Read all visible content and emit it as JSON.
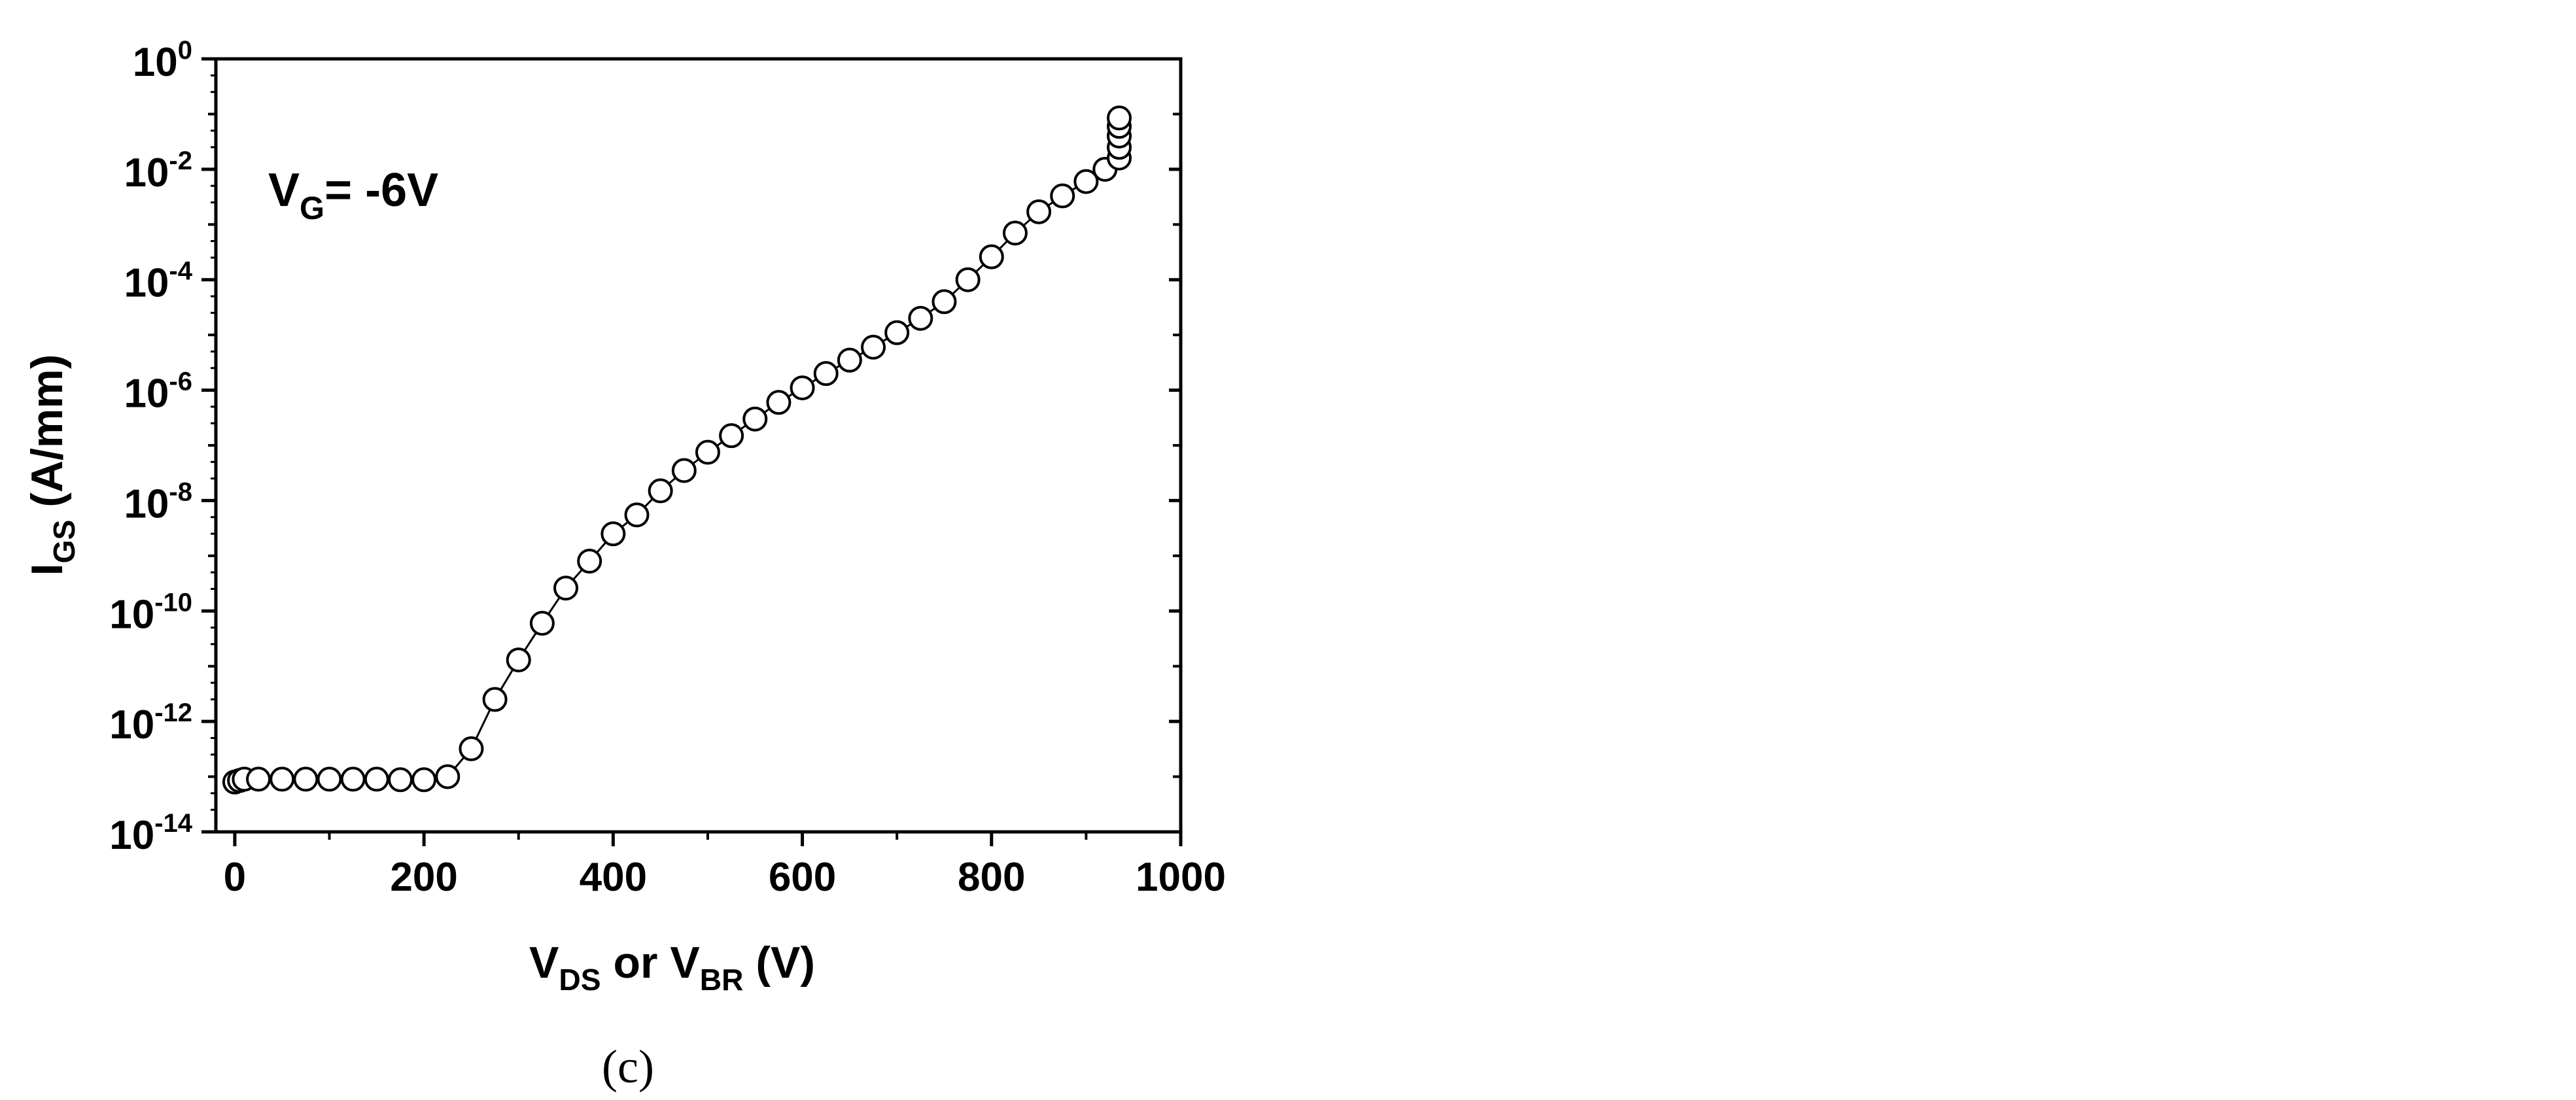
{
  "chart_data": {
    "type": "scatter",
    "x_scale": "linear",
    "y_scale": "log",
    "xlim": [
      -20,
      1000
    ],
    "ylim_exponents": [
      -14,
      0
    ],
    "x_ticks": [
      {
        "value": 0,
        "label": "0"
      },
      {
        "value": 200,
        "label": "200"
      },
      {
        "value": 400,
        "label": "400"
      },
      {
        "value": 600,
        "label": "600"
      },
      {
        "value": 800,
        "label": "800"
      },
      {
        "value": 1000,
        "label": "1000"
      }
    ],
    "y_ticks": [
      {
        "exp": 0,
        "base": "10",
        "sup": "0"
      },
      {
        "exp": -2,
        "base": "10",
        "sup": "-2"
      },
      {
        "exp": -4,
        "base": "10",
        "sup": "-4"
      },
      {
        "exp": -6,
        "base": "10",
        "sup": "-6"
      },
      {
        "exp": -8,
        "base": "10",
        "sup": "-8"
      },
      {
        "exp": -10,
        "base": "10",
        "sup": "-10"
      },
      {
        "exp": -12,
        "base": "10",
        "sup": "-12"
      },
      {
        "exp": -14,
        "base": "10",
        "sup": "-14"
      }
    ],
    "xlabel": {
      "parts": [
        {
          "text": "V"
        },
        {
          "text": "DS",
          "sub": true
        },
        {
          "text": " or V"
        },
        {
          "text": "BR",
          "sub": true
        },
        {
          "text": " (V)"
        }
      ]
    },
    "ylabel": {
      "parts": [
        {
          "text": "I"
        },
        {
          "text": "GS",
          "sub": true
        },
        {
          "text": " (A/mm)"
        }
      ]
    },
    "annotation": {
      "parts": [
        {
          "text": "V"
        },
        {
          "text": "G",
          "sub": true
        },
        {
          "text": "= -6V"
        }
      ]
    },
    "series": [
      {
        "marker": "open-circle",
        "line": true,
        "points": [
          [
            0,
            8e-14
          ],
          [
            5,
            8.5e-14
          ],
          [
            10,
            9e-14
          ],
          [
            25,
            9e-14
          ],
          [
            50,
            9e-14
          ],
          [
            75,
            9e-14
          ],
          [
            100,
            9e-14
          ],
          [
            125,
            9e-14
          ],
          [
            150,
            9e-14
          ],
          [
            175,
            8.8e-14
          ],
          [
            200,
            8.8e-14
          ],
          [
            225,
            1e-13
          ],
          [
            250,
            3.2e-13
          ],
          [
            275,
            2.5e-12
          ],
          [
            300,
            1.3e-11
          ],
          [
            325,
            6e-11
          ],
          [
            350,
            2.6e-10
          ],
          [
            375,
            8e-10
          ],
          [
            400,
            2.5e-09
          ],
          [
            425,
            5.5e-09
          ],
          [
            450,
            1.5e-08
          ],
          [
            475,
            3.5e-08
          ],
          [
            500,
            7.5e-08
          ],
          [
            525,
            1.5e-07
          ],
          [
            550,
            3e-07
          ],
          [
            575,
            6e-07
          ],
          [
            600,
            1.1e-06
          ],
          [
            625,
            2e-06
          ],
          [
            650,
            3.5e-06
          ],
          [
            675,
            6e-06
          ],
          [
            700,
            1.1e-05
          ],
          [
            725,
            2e-05
          ],
          [
            750,
            4e-05
          ],
          [
            775,
            0.0001
          ],
          [
            800,
            0.00026
          ],
          [
            825,
            0.0007
          ],
          [
            850,
            0.0017
          ],
          [
            875,
            0.0033
          ],
          [
            900,
            0.006
          ],
          [
            920,
            0.01
          ],
          [
            935,
            0.016
          ],
          [
            935,
            0.025
          ],
          [
            935,
            0.04
          ],
          [
            935,
            0.06
          ],
          [
            935,
            0.085
          ]
        ]
      }
    ]
  },
  "caption": "(c)"
}
